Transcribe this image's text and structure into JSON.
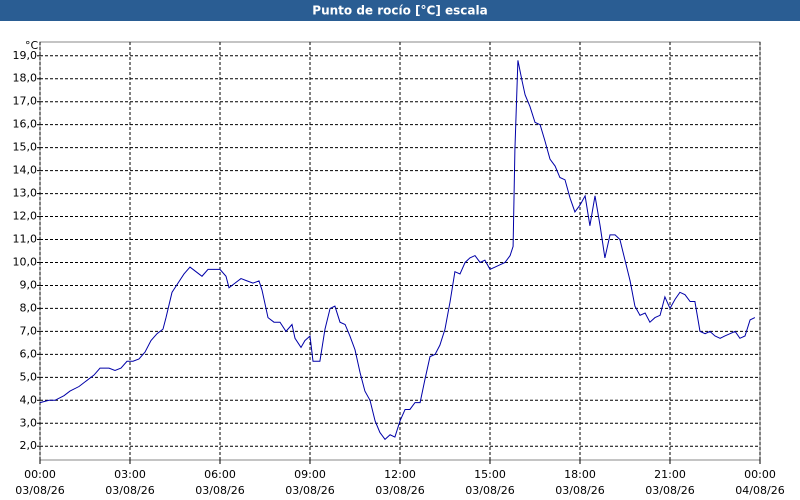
{
  "chart_data": {
    "type": "line",
    "title": "Punto de rocío [°C] escala",
    "y_unit": "°C",
    "color": "#0000a8",
    "grid": true,
    "xlim": [
      0,
      24
    ],
    "xticks": [
      {
        "value": 0,
        "label": "00:00",
        "date": "03/08/26"
      },
      {
        "value": 3,
        "label": "03:00",
        "date": "03/08/26"
      },
      {
        "value": 6,
        "label": "06:00",
        "date": "03/08/26"
      },
      {
        "value": 9,
        "label": "09:00",
        "date": "03/08/26"
      },
      {
        "value": 12,
        "label": "12:00",
        "date": "03/08/26"
      },
      {
        "value": 15,
        "label": "15:00",
        "date": "03/08/26"
      },
      {
        "value": 18,
        "label": "18:00",
        "date": "03/08/26"
      },
      {
        "value": 21,
        "label": "21:00",
        "date": "03/08/26"
      },
      {
        "value": 24,
        "label": "00:00",
        "date": "04/08/26"
      }
    ],
    "ylim": [
      1.4,
      19.6
    ],
    "yticks": [
      {
        "value": 2,
        "label": "2,0"
      },
      {
        "value": 3,
        "label": "3,0"
      },
      {
        "value": 4,
        "label": "4,0"
      },
      {
        "value": 5,
        "label": "5,0"
      },
      {
        "value": 6,
        "label": "6,0"
      },
      {
        "value": 7,
        "label": "7,0"
      },
      {
        "value": 8,
        "label": "8,0"
      },
      {
        "value": 9,
        "label": "9,0"
      },
      {
        "value": 10,
        "label": "10,0"
      },
      {
        "value": 11,
        "label": "11,0"
      },
      {
        "value": 12,
        "label": "12,0"
      },
      {
        "value": 13,
        "label": "13,0"
      },
      {
        "value": 14,
        "label": "14,0"
      },
      {
        "value": 15,
        "label": "15,0"
      },
      {
        "value": 16,
        "label": "16,0"
      },
      {
        "value": 17,
        "label": "17,0"
      },
      {
        "value": 18,
        "label": "18,0"
      },
      {
        "value": 19,
        "label": "19,0"
      }
    ],
    "x": [
      0,
      0.3,
      0.5,
      0.8,
      1.0,
      1.3,
      1.5,
      1.8,
      2.0,
      2.3,
      2.5,
      2.7,
      2.9,
      3.1,
      3.3,
      3.5,
      3.7,
      3.9,
      4.1,
      4.2,
      4.4,
      4.6,
      4.8,
      5.0,
      5.2,
      5.4,
      5.6,
      5.8,
      6.0,
      6.2,
      6.3,
      6.5,
      6.7,
      6.9,
      7.1,
      7.3,
      7.4,
      7.6,
      7.8,
      8.0,
      8.2,
      8.4,
      8.5,
      8.7,
      8.83,
      9.0,
      9.1,
      9.33,
      9.5,
      9.67,
      9.83,
      10.0,
      10.17,
      10.33,
      10.5,
      10.67,
      10.83,
      11.0,
      11.17,
      11.33,
      11.5,
      11.67,
      11.83,
      12.0,
      12.17,
      12.33,
      12.5,
      12.67,
      12.83,
      13.0,
      13.17,
      13.33,
      13.5,
      13.67,
      13.83,
      14.0,
      14.17,
      14.33,
      14.5,
      14.67,
      14.83,
      15.0,
      15.17,
      15.33,
      15.5,
      15.67,
      15.77,
      15.83,
      15.93,
      16.07,
      16.17,
      16.33,
      16.5,
      16.67,
      16.83,
      17.0,
      17.17,
      17.33,
      17.5,
      17.67,
      17.83,
      18.0,
      18.17,
      18.33,
      18.5,
      18.67,
      18.83,
      19.0,
      19.17,
      19.33,
      19.5,
      19.67,
      19.83,
      20.0,
      20.17,
      20.33,
      20.5,
      20.67,
      20.83,
      21.0,
      21.17,
      21.33,
      21.5,
      21.67,
      21.83,
      22.0,
      22.17,
      22.33,
      22.5,
      22.67,
      22.83,
      23.0,
      23.17,
      23.33,
      23.5,
      23.67,
      23.83
    ],
    "values": [
      3.9,
      4.0,
      4.0,
      4.2,
      4.4,
      4.6,
      4.8,
      5.1,
      5.4,
      5.4,
      5.3,
      5.4,
      5.7,
      5.7,
      5.8,
      6.1,
      6.6,
      6.9,
      7.1,
      7.6,
      8.7,
      9.1,
      9.5,
      9.8,
      9.6,
      9.4,
      9.7,
      9.7,
      9.7,
      9.4,
      8.9,
      9.1,
      9.3,
      9.2,
      9.1,
      9.2,
      8.8,
      7.6,
      7.4,
      7.4,
      7.0,
      7.3,
      6.7,
      6.3,
      6.6,
      6.8,
      5.7,
      5.7,
      7.1,
      8.0,
      8.1,
      7.4,
      7.3,
      6.8,
      6.2,
      5.2,
      4.4,
      4.0,
      3.1,
      2.6,
      2.3,
      2.5,
      2.4,
      3.1,
      3.6,
      3.6,
      3.9,
      3.9,
      4.9,
      5.9,
      6.0,
      6.4,
      7.1,
      8.3,
      9.6,
      9.5,
      10.0,
      10.2,
      10.3,
      10.0,
      10.1,
      9.7,
      9.8,
      9.9,
      10.0,
      10.3,
      10.7,
      14.9,
      18.8,
      17.9,
      17.3,
      16.8,
      16.1,
      16.0,
      15.3,
      14.5,
      14.2,
      13.7,
      13.6,
      12.8,
      12.2,
      12.5,
      12.9,
      11.6,
      12.9,
      11.6,
      10.2,
      11.2,
      11.2,
      11.0,
      10.1,
      9.2,
      8.1,
      7.7,
      7.8,
      7.4,
      7.6,
      7.7,
      8.5,
      8.0,
      8.4,
      8.7,
      8.6,
      8.3,
      8.3,
      7.0,
      6.9,
      7.0,
      6.8,
      6.7,
      6.8,
      6.9,
      7.0,
      6.7,
      6.8,
      7.5,
      7.6
    ]
  }
}
